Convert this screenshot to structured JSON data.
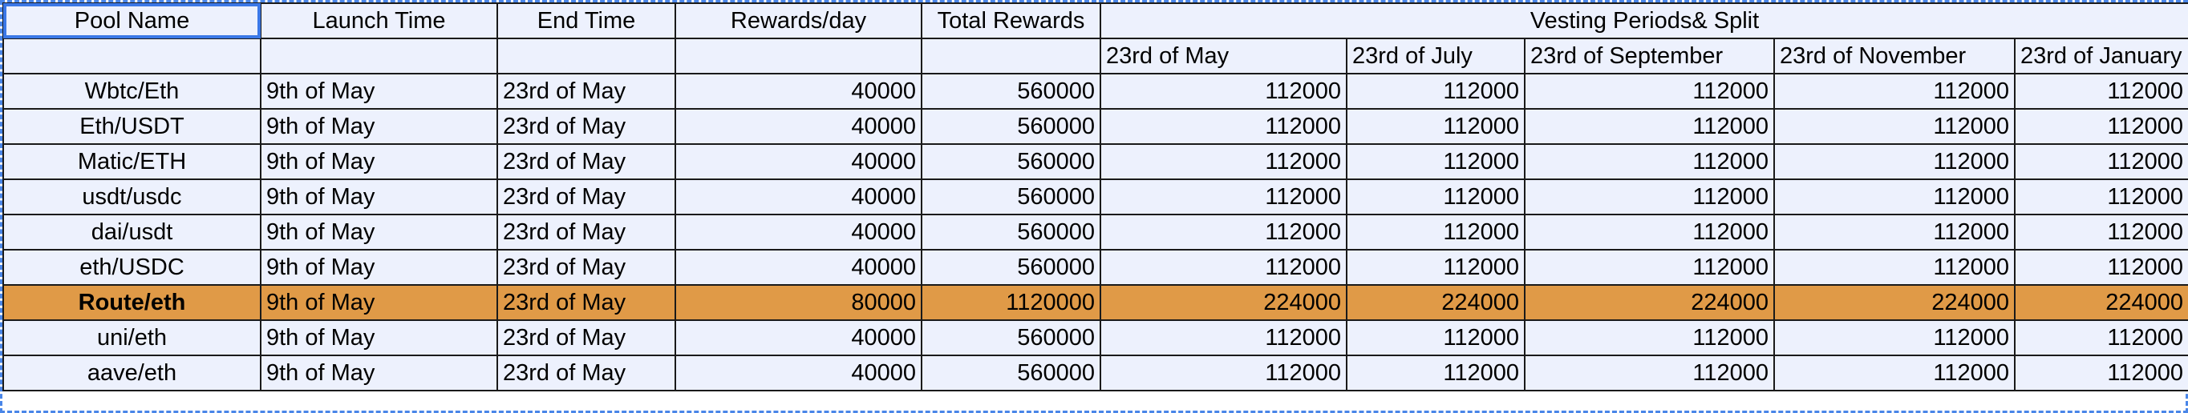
{
  "colors": {
    "cell_background": "#edf1fd",
    "highlight_row": "#e09a47",
    "selection_border": "#3b78e7",
    "grid_line": "#1a1a1a"
  },
  "header": {
    "pool_name": "Pool Name",
    "launch_time": "Launch Time",
    "end_time": "End Time",
    "rewards_per_day": "Rewards/day",
    "total_rewards": "Total Rewards",
    "vesting": "Vesting Periods& Split",
    "vesting_dates": [
      "23rd of May",
      "23rd of July",
      "23rd of September",
      "23rd of November",
      "23rd of January"
    ]
  },
  "rows": [
    {
      "name": "Wbtc/Eth",
      "launch": "9th of May",
      "end": "23rd of May",
      "per_day": "40000",
      "total": "560000",
      "v": [
        "112000",
        "112000",
        "112000",
        "112000",
        "112000"
      ]
    },
    {
      "name": "Eth/USDT",
      "launch": "9th of May",
      "end": "23rd of May",
      "per_day": "40000",
      "total": "560000",
      "v": [
        "112000",
        "112000",
        "112000",
        "112000",
        "112000"
      ]
    },
    {
      "name": "Matic/ETH",
      "launch": "9th of May",
      "end": "23rd of May",
      "per_day": "40000",
      "total": "560000",
      "v": [
        "112000",
        "112000",
        "112000",
        "112000",
        "112000"
      ]
    },
    {
      "name": "usdt/usdc",
      "launch": "9th of May",
      "end": "23rd of May",
      "per_day": "40000",
      "total": "560000",
      "v": [
        "112000",
        "112000",
        "112000",
        "112000",
        "112000"
      ]
    },
    {
      "name": "dai/usdt",
      "launch": "9th of May",
      "end": "23rd of May",
      "per_day": "40000",
      "total": "560000",
      "v": [
        "112000",
        "112000",
        "112000",
        "112000",
        "112000"
      ]
    },
    {
      "name": "eth/USDC",
      "launch": "9th of May",
      "end": "23rd of May",
      "per_day": "40000",
      "total": "560000",
      "v": [
        "112000",
        "112000",
        "112000",
        "112000",
        "112000"
      ]
    },
    {
      "name": "Route/eth",
      "launch": "9th of May",
      "end": "23rd of May",
      "per_day": "80000",
      "total": "1120000",
      "v": [
        "224000",
        "224000",
        "224000",
        "224000",
        "224000"
      ]
    },
    {
      "name": "uni/eth",
      "launch": "9th of May",
      "end": "23rd of May",
      "per_day": "40000",
      "total": "560000",
      "v": [
        "112000",
        "112000",
        "112000",
        "112000",
        "112000"
      ]
    },
    {
      "name": "aave/eth",
      "launch": "9th of May",
      "end": "23rd of May",
      "per_day": "40000",
      "total": "560000",
      "v": [
        "112000",
        "112000",
        "112000",
        "112000",
        "112000"
      ]
    }
  ]
}
